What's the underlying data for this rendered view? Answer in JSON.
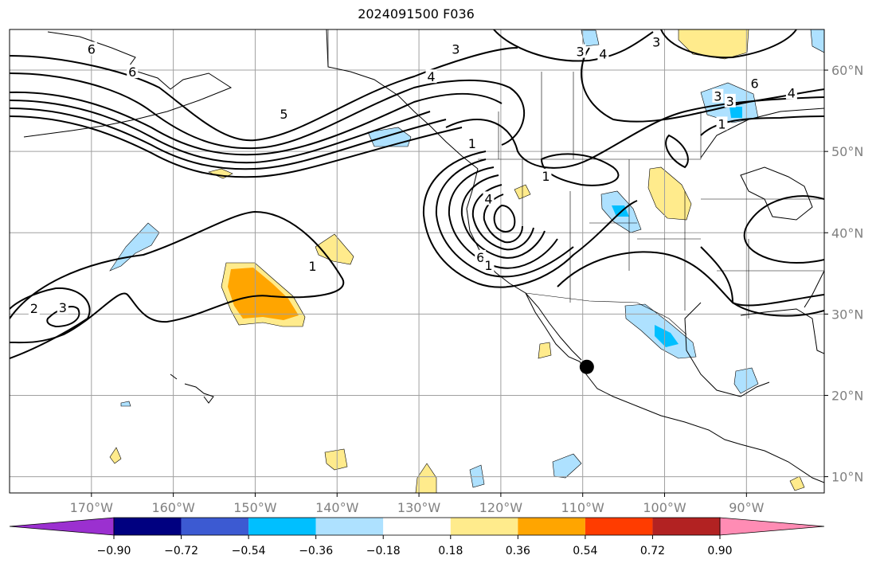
{
  "title": "2024091500 F036",
  "map": {
    "extent": {
      "lon_min": -180,
      "lon_max": -80.5,
      "lat_min": 8,
      "lat_max": 65
    },
    "meridians": [
      -170,
      -160,
      -150,
      -140,
      -130,
      -120,
      -110,
      -100,
      -90
    ],
    "parallels": [
      10,
      20,
      30,
      40,
      50,
      60
    ],
    "lon_labels": [
      "170°W",
      "160°W",
      "150°W",
      "140°W",
      "130°W",
      "120°W",
      "110°W",
      "100°W",
      "90°W"
    ],
    "lat_labels": [
      "10°N",
      "20°N",
      "30°N",
      "40°N",
      "50°N",
      "60°N"
    ],
    "marker": {
      "lon": -109.5,
      "lat": 23.5,
      "color": "#000000"
    }
  },
  "contour_labels": [
    {
      "text": "6",
      "lon": -170,
      "lat": 62.6
    },
    {
      "text": "6",
      "lon": -165,
      "lat": 59.8
    },
    {
      "text": "5",
      "lon": -146.5,
      "lat": 54.6
    },
    {
      "text": "2",
      "lon": -177,
      "lat": 30.7
    },
    {
      "text": "3",
      "lon": -173.5,
      "lat": 30.8
    },
    {
      "text": "1",
      "lon": -143,
      "lat": 35.9
    },
    {
      "text": "3",
      "lon": -125.5,
      "lat": 62.6
    },
    {
      "text": "4",
      "lon": -128.5,
      "lat": 59.2
    },
    {
      "text": "3",
      "lon": -110.3,
      "lat": 62.3
    },
    {
      "text": "4",
      "lon": -107.5,
      "lat": 62.0
    },
    {
      "text": "3",
      "lon": -101,
      "lat": 63.5
    },
    {
      "text": "1",
      "lon": -123.5,
      "lat": 51.0
    },
    {
      "text": "1",
      "lon": -114.5,
      "lat": 47.0
    },
    {
      "text": "4",
      "lon": -121.5,
      "lat": 44.2
    },
    {
      "text": "6",
      "lon": -122.5,
      "lat": 37.0
    },
    {
      "text": "1",
      "lon": -121.5,
      "lat": 36.0
    },
    {
      "text": "6",
      "lon": -89,
      "lat": 58.4
    },
    {
      "text": "4",
      "lon": -84.5,
      "lat": 57.2
    },
    {
      "text": "3",
      "lon": -92,
      "lat": 56.2
    },
    {
      "text": "1",
      "lon": -93,
      "lat": 53.4
    },
    {
      "text": "3",
      "lon": -93.5,
      "lat": 56.8
    }
  ],
  "colorbar": {
    "colors": [
      "#9b30d0",
      "#000080",
      "#3c5ad2",
      "#00bfff",
      "#aee1ff",
      "#ffffff",
      "#ffeb8c",
      "#ffa500",
      "#ff3c00",
      "#b22222",
      "#ff8cb4"
    ],
    "extend_min_color": "#9b30d0",
    "extend_max_color": "#ff8cb4",
    "tick_labels": [
      "−0.90",
      "−0.72",
      "−0.54",
      "−0.36",
      "−0.18",
      "0.18",
      "0.36",
      "0.54",
      "0.72",
      "0.90"
    ]
  }
}
